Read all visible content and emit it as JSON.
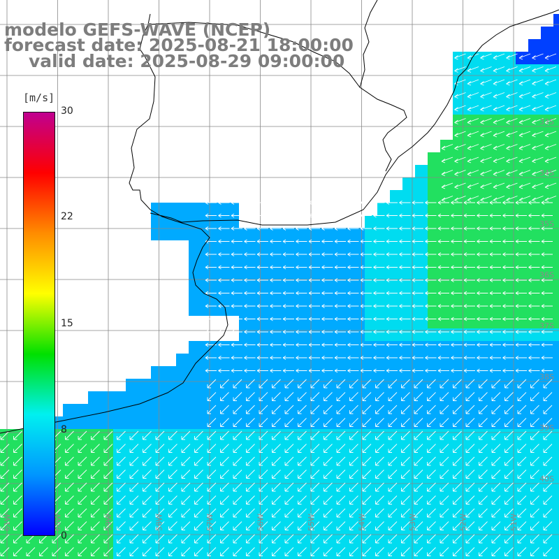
{
  "title": {
    "line1": "modelo GEFS-WAVE (NCEP)",
    "line2": "forecast date: 2025-08-21 18:00:00",
    "line3": "valid date: 2025-08-29 09:00:00"
  },
  "colorbar": {
    "units": "[m/s]",
    "ticks": [
      "30",
      "22",
      "15",
      "8",
      "0"
    ],
    "tick_values": [
      30,
      22,
      15,
      8,
      0
    ],
    "range": [
      0,
      30
    ],
    "colors": [
      "#0000ff",
      "#0096ff",
      "#00f0f0",
      "#00e000",
      "#ffff00",
      "#ff8c00",
      "#ff0000",
      "#c00090"
    ]
  },
  "map": {
    "region": "Rio de la Plata / South Atlantic",
    "lon_labels": [
      "61W",
      "60W",
      "59W",
      "58W",
      "57W",
      "56W",
      "55W",
      "54W",
      "53W",
      "52W",
      "51W"
    ],
    "lat_labels": [
      "33S",
      "34S",
      "35S",
      "36S",
      "37S",
      "38S",
      "39S",
      "40S"
    ],
    "land_color": "#ffffff",
    "arrow_color": "#ffffff",
    "field_colors": {
      "blue": "#0040ff",
      "light_blue": "#00aaff",
      "cyan": "#00dcf0",
      "green": "#22e060"
    }
  }
}
